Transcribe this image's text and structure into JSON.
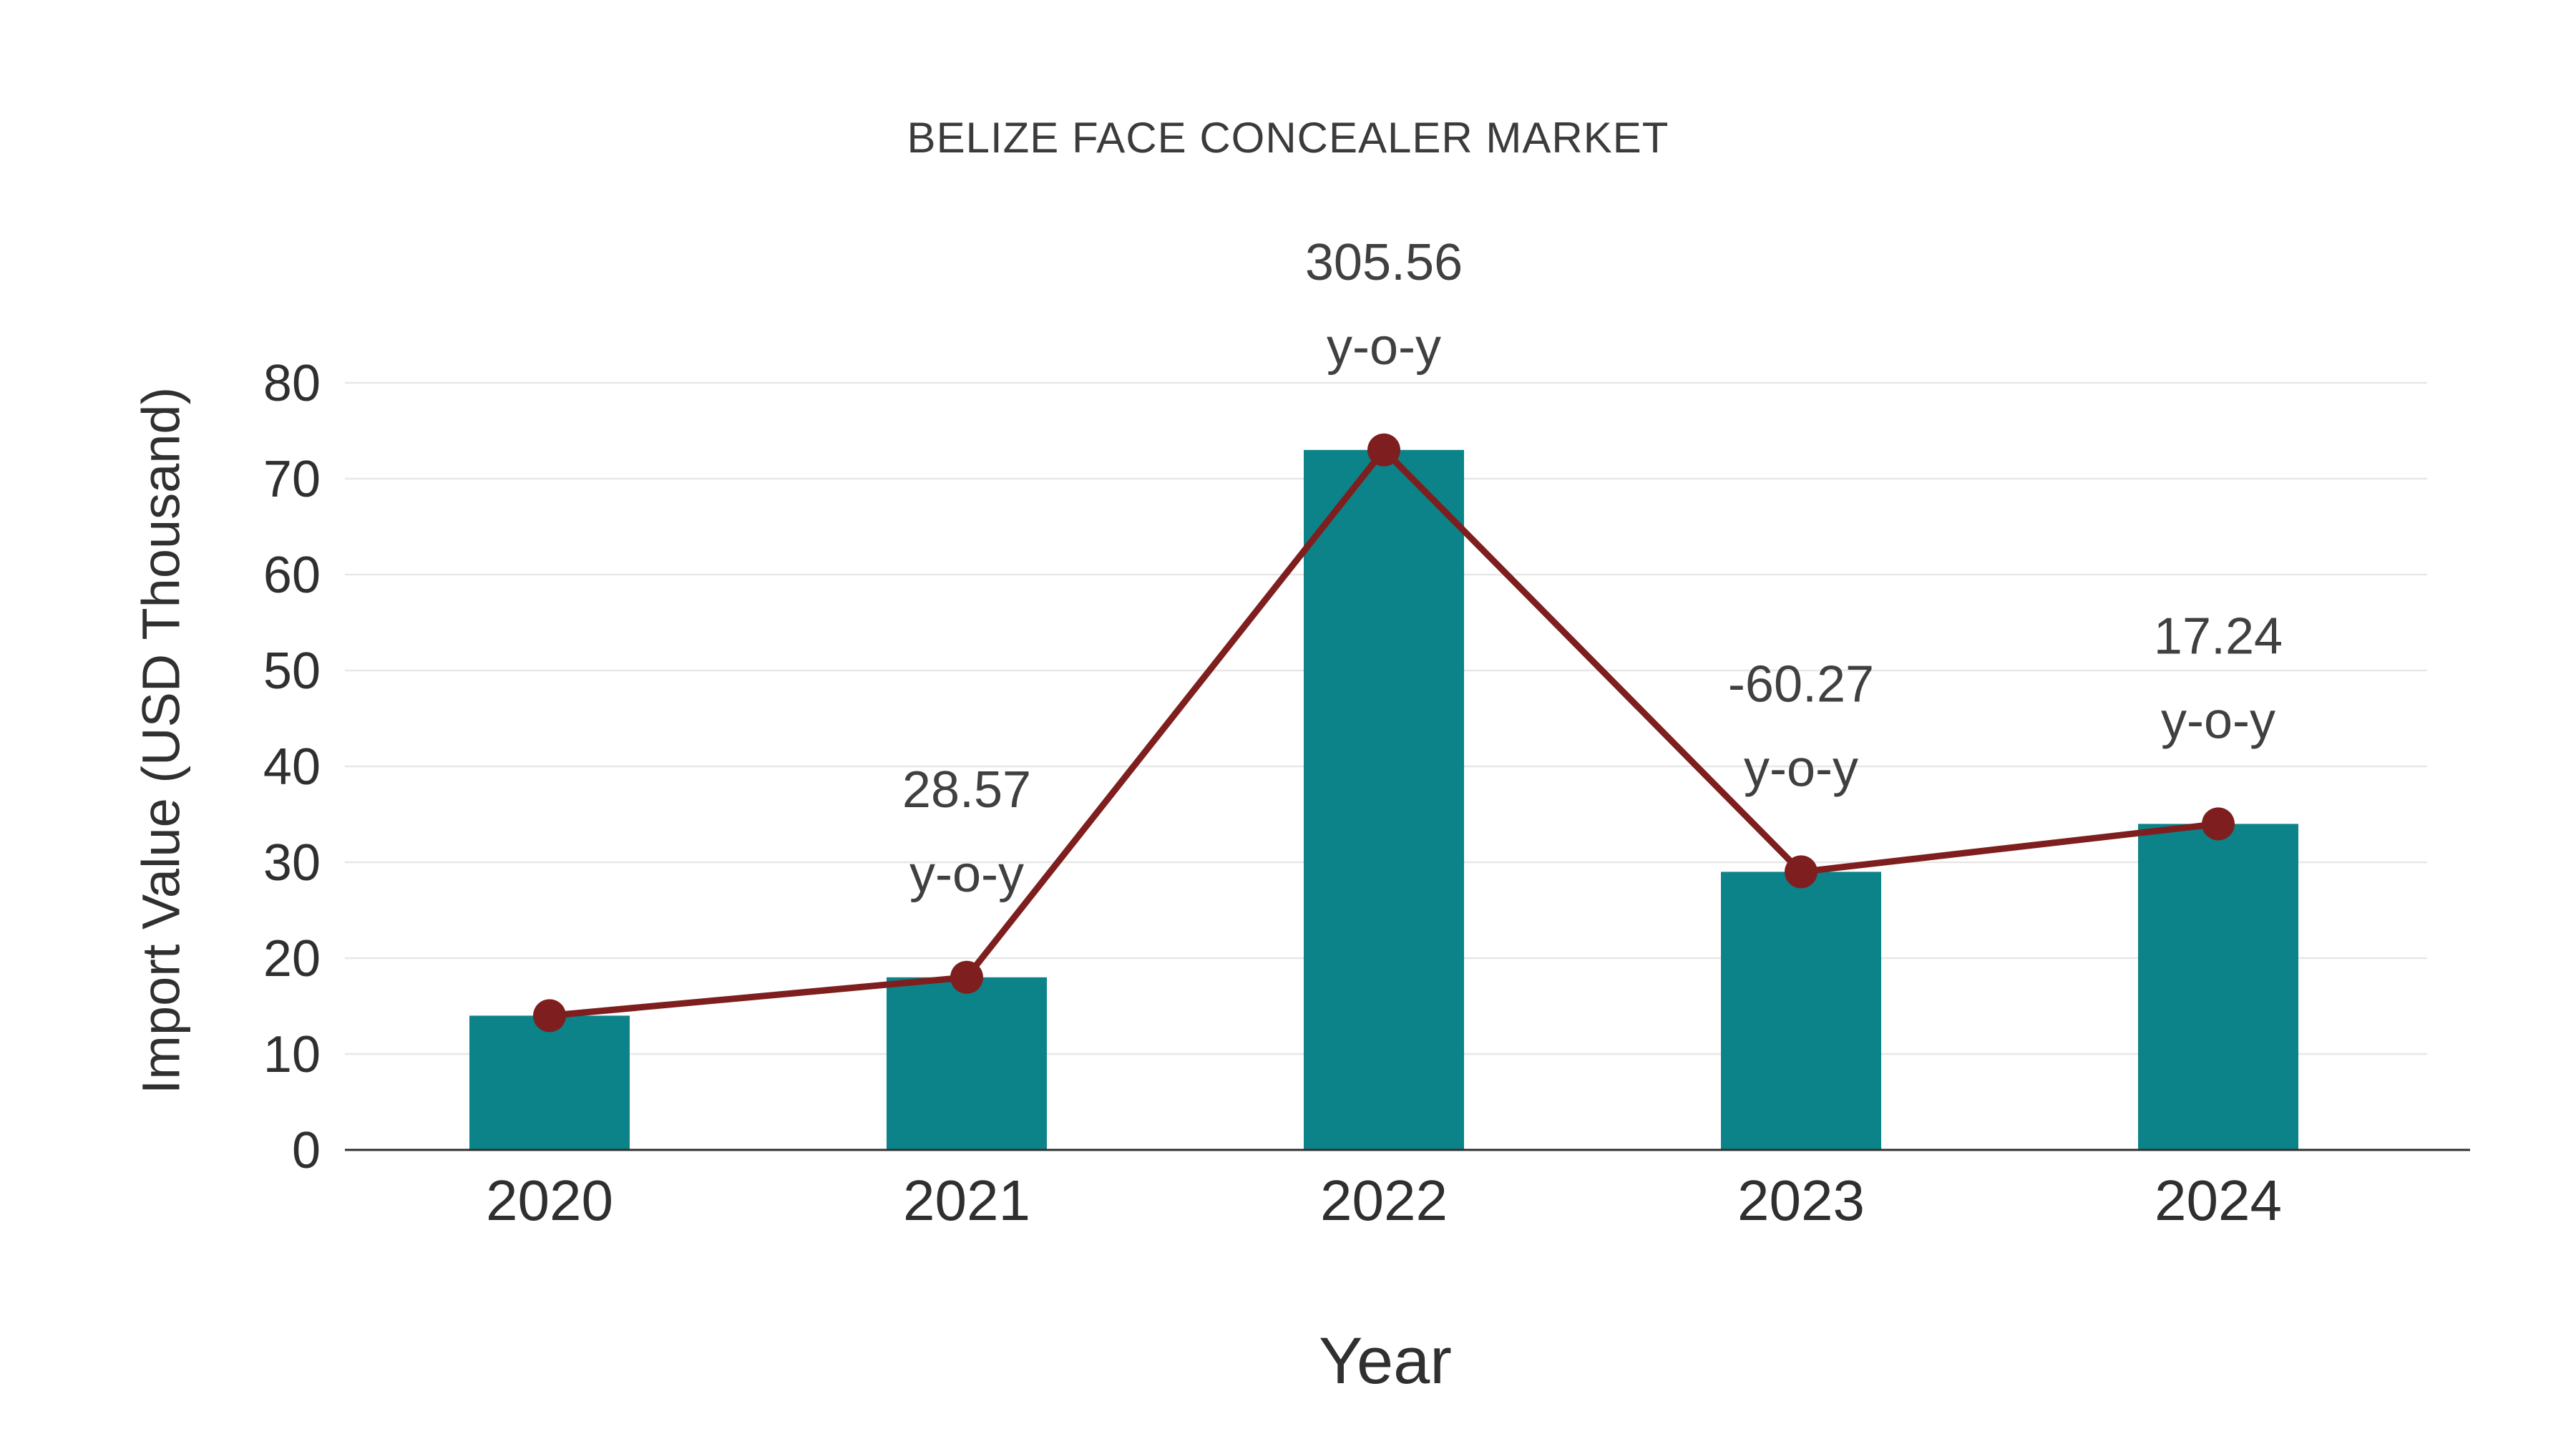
{
  "page": {
    "background_color": "#ffffff"
  },
  "chart_data": {
    "type": "bar",
    "title": "BELIZE FACE CONCEALER MARKET",
    "xlabel": "Year",
    "ylabel": "Import Value (USD Thousand)",
    "categories": [
      "2020",
      "2021",
      "2022",
      "2023",
      "2024"
    ],
    "series": [
      {
        "name": "Import Value (USD Thousand)",
        "type": "bar",
        "color": "#0c8289",
        "values": [
          14,
          18,
          73,
          29,
          34
        ]
      },
      {
        "name": "y-o-y trend",
        "type": "line",
        "color": "#7e1e1e",
        "values": [
          14,
          18,
          73,
          29,
          34
        ]
      }
    ],
    "annotations": [
      {
        "category": "2021",
        "value": "28.57",
        "label": "y-o-y"
      },
      {
        "category": "2022",
        "value": "305.56",
        "label": "y-o-y"
      },
      {
        "category": "2023",
        "value": "-60.27",
        "label": "y-o-y"
      },
      {
        "category": "2024",
        "value": "17.24",
        "label": "y-o-y"
      }
    ],
    "ylim": [
      0,
      80
    ],
    "yticks": [
      0,
      10,
      20,
      30,
      40,
      50,
      60,
      70,
      80
    ],
    "grid": true,
    "legend_position": "none",
    "colors": {
      "gridline": "#e7e7e7",
      "axis_line": "#2f2f2f",
      "tick_label": "#2f2f2f",
      "annotation": "#404040"
    }
  }
}
